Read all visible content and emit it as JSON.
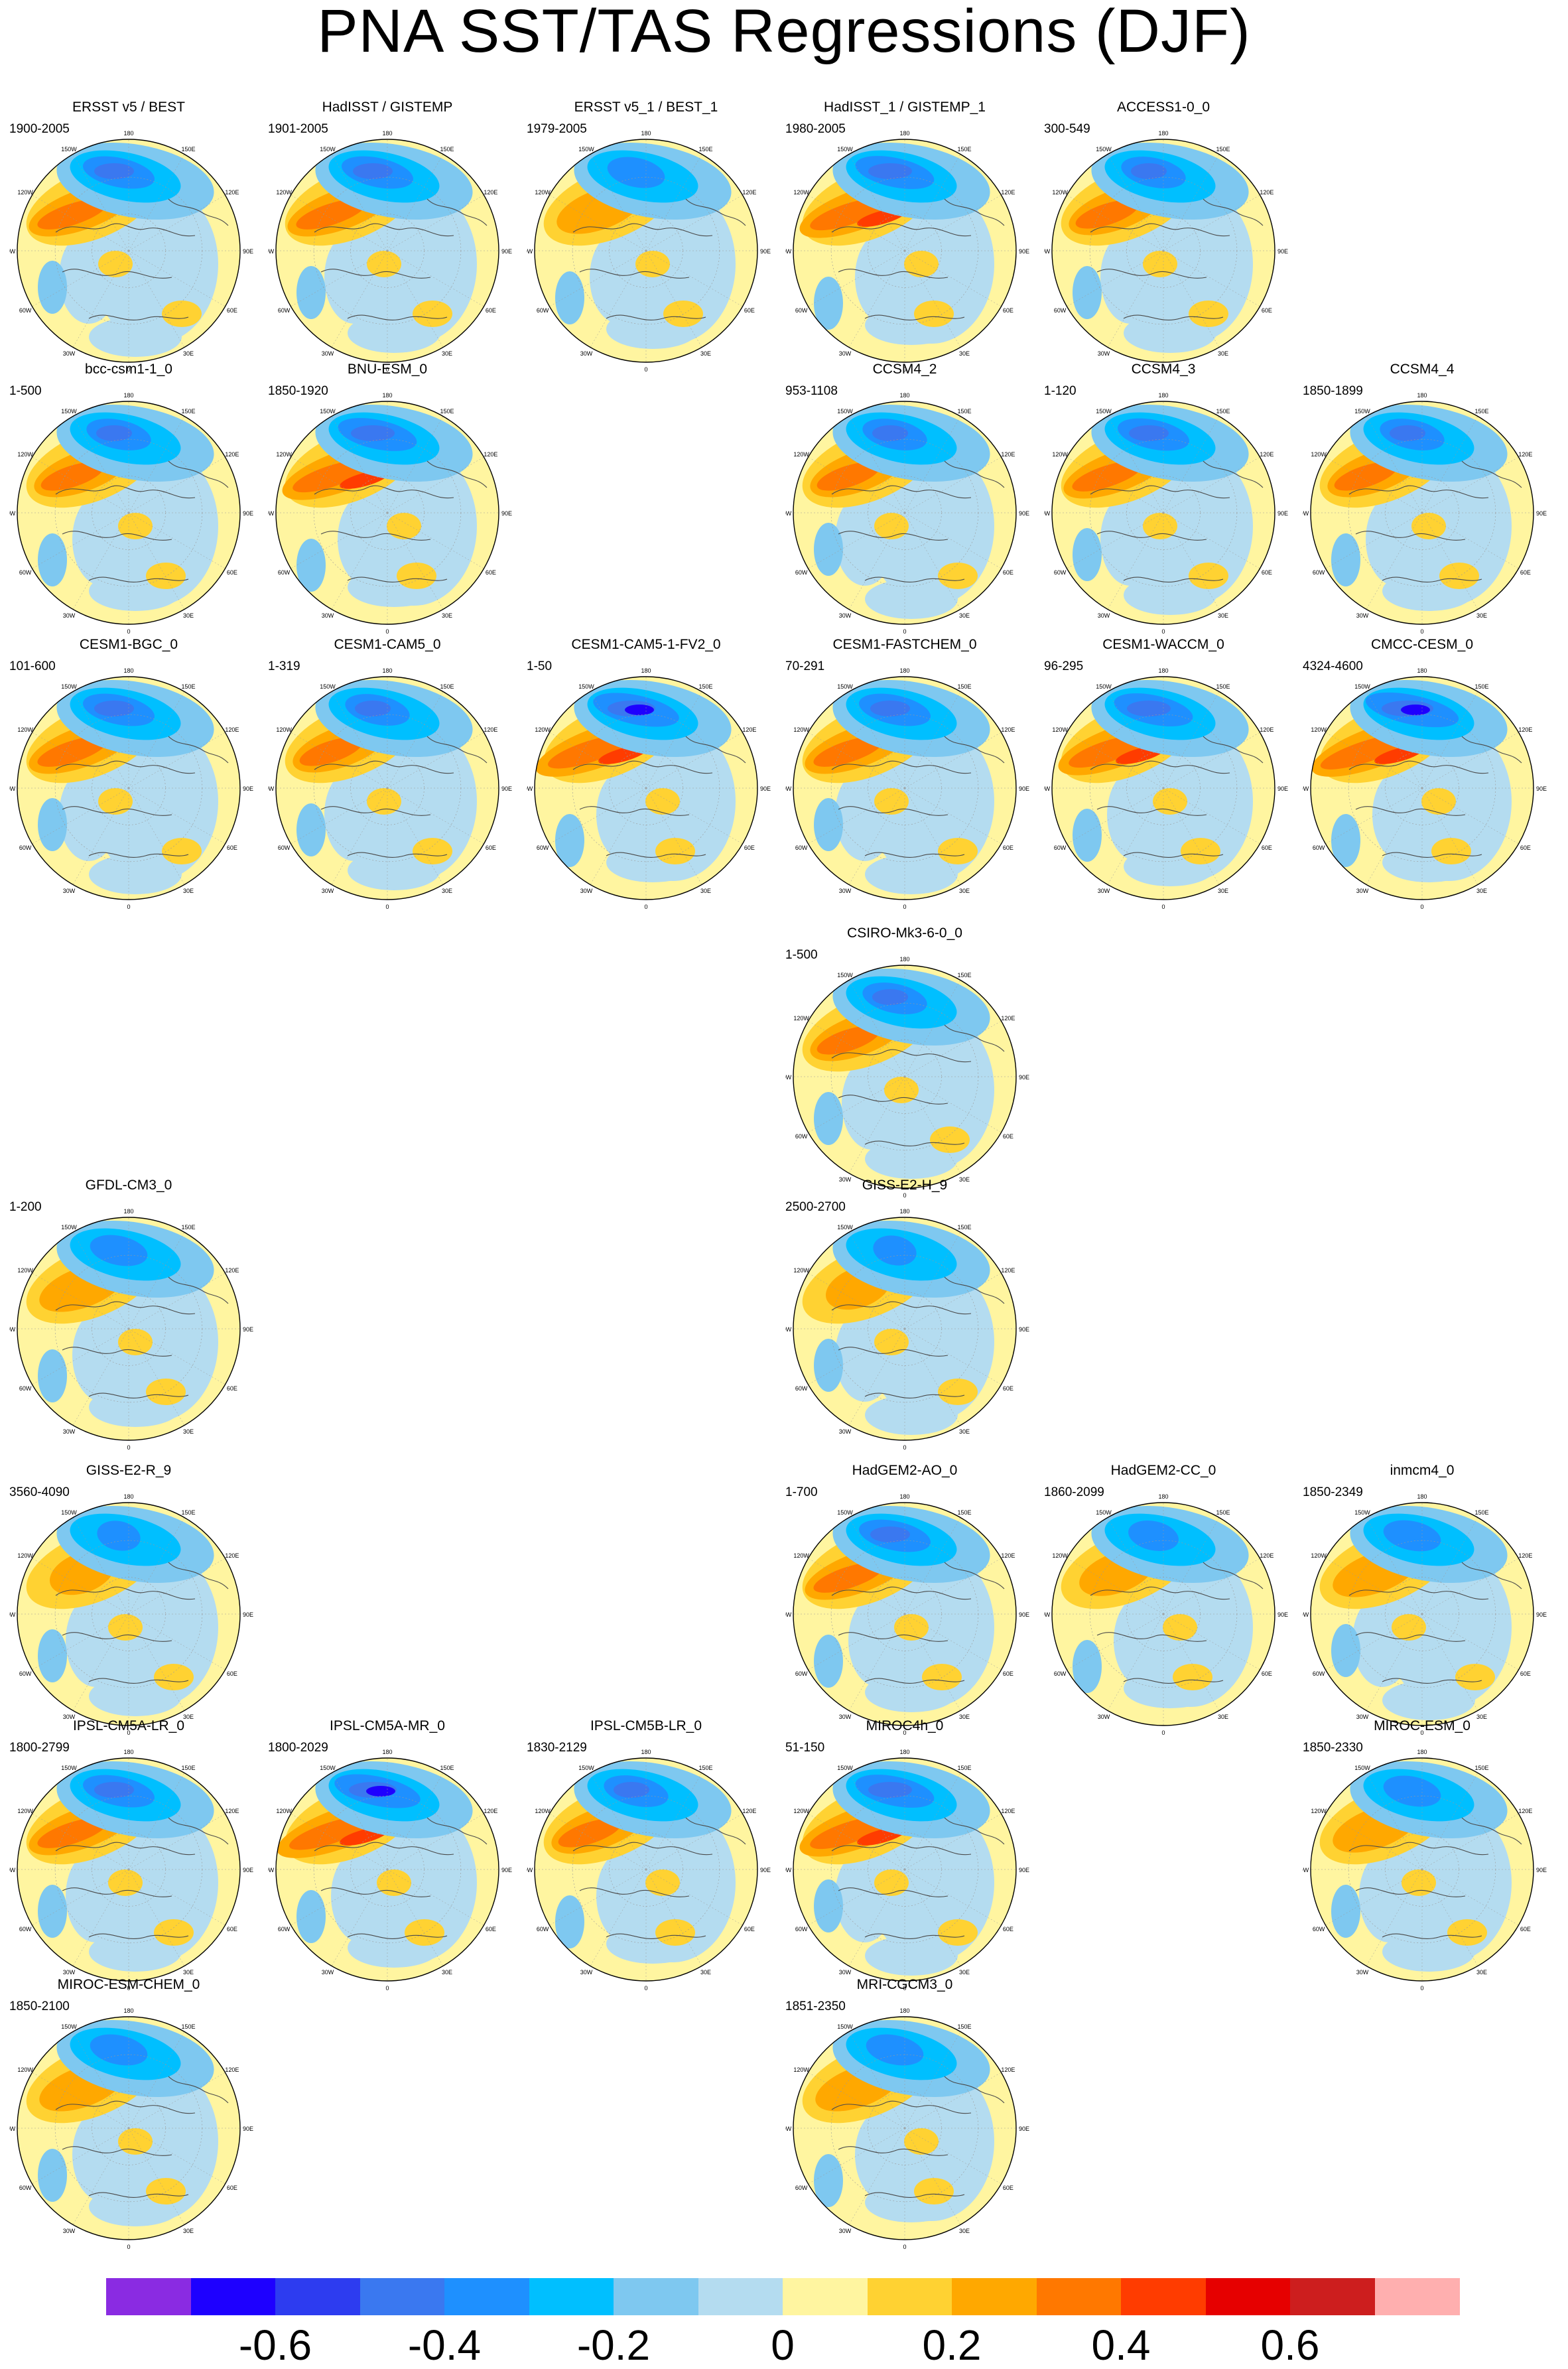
{
  "title": "PNA SST/TAS Regressions (DJF)",
  "map_labels": {
    "lon_180": "180",
    "lon_150w": "150W",
    "lon_150e": "150E",
    "lon_120w": "120W",
    "lon_120e": "120E",
    "lon_90w": "90W",
    "lon_90e": "90E",
    "lon_60w": "60W",
    "lon_60e": "60E",
    "lon_30w": "30W",
    "lon_30e": "30E",
    "lon_0": "0"
  },
  "panels": [
    {
      "name": "ERSST v5 / BEST",
      "years": "1900-2005",
      "variant": 0,
      "intensity": 1.0
    },
    {
      "name": "HadISST / GISTEMP",
      "years": "1901-2005",
      "variant": 1,
      "intensity": 1.0
    },
    {
      "name": "ERSST v5_1 / BEST_1",
      "years": "1979-2005",
      "variant": 2,
      "intensity": 0.8
    },
    {
      "name": "HadISST_1 / GISTEMP_1",
      "years": "1980-2005",
      "variant": 3,
      "intensity": 1.1
    },
    {
      "name": "ACCESS1-0_0",
      "years": "300-549",
      "variant": 1,
      "intensity": 0.9
    },
    {
      "name": "bcc-csm1-1_0",
      "years": "1-500",
      "variant": 2,
      "intensity": 0.9
    },
    {
      "name": "BNU-ESM_0",
      "years": "1850-1920",
      "variant": 3,
      "intensity": 1.1
    },
    {
      "name": "CCSM4_2",
      "years": "953-1108",
      "variant": 0,
      "intensity": 0.9
    },
    {
      "name": "CCSM4_3",
      "years": "1-120",
      "variant": 1,
      "intensity": 1.0
    },
    {
      "name": "CCSM4_4",
      "years": "1850-1899",
      "variant": 2,
      "intensity": 0.9
    },
    {
      "name": "CESM1-BGC_0",
      "years": "101-600",
      "variant": 0,
      "intensity": 1.0
    },
    {
      "name": "CESM1-CAM5_0",
      "years": "1-319",
      "variant": 1,
      "intensity": 0.9
    },
    {
      "name": "CESM1-CAM5-1-FV2_0",
      "years": "1-50",
      "variant": 3,
      "intensity": 1.2
    },
    {
      "name": "CESM1-FASTCHEM_0",
      "years": "70-291",
      "variant": 0,
      "intensity": 1.0
    },
    {
      "name": "CESM1-WACCM_0",
      "years": "96-295",
      "variant": 2,
      "intensity": 1.1
    },
    {
      "name": "CMCC-CESM_0",
      "years": "4324-4600",
      "variant": 3,
      "intensity": 1.3
    },
    {
      "name": "CSIRO-Mk3-6-0_0",
      "years": "1-500",
      "variant": 1,
      "intensity": 0.9
    },
    {
      "name": "GFDL-CM3_0",
      "years": "1-200",
      "variant": 2,
      "intensity": 0.8
    },
    {
      "name": "GISS-E2-H_9",
      "years": "2500-2700",
      "variant": 0,
      "intensity": 0.6
    },
    {
      "name": "GISS-E2-R_9",
      "years": "3560-4090",
      "variant": 1,
      "intensity": 0.6
    },
    {
      "name": "HadGEM2-AO_0",
      "years": "1-700",
      "variant": 2,
      "intensity": 1.0
    },
    {
      "name": "HadGEM2-CC_0",
      "years": "1860-2099",
      "variant": 3,
      "intensity": 0.7
    },
    {
      "name": "inmcm4_0",
      "years": "1850-2349",
      "variant": 0,
      "intensity": 0.8
    },
    {
      "name": "IPSL-CM5A-LR_0",
      "years": "1800-2799",
      "variant": 1,
      "intensity": 1.0
    },
    {
      "name": "IPSL-CM5A-MR_0",
      "years": "1800-2029",
      "variant": 2,
      "intensity": 1.2
    },
    {
      "name": "IPSL-CM5B-LR_0",
      "years": "1830-2129",
      "variant": 3,
      "intensity": 0.9
    },
    {
      "name": "MIROC4h_0",
      "years": "51-150",
      "variant": 0,
      "intensity": 1.1
    },
    {
      "name": "MIROC-ESM_0",
      "years": "1850-2330",
      "variant": 1,
      "intensity": 0.8
    },
    {
      "name": "MIROC-ESM-CHEM_0",
      "years": "1850-2100",
      "variant": 2,
      "intensity": 0.8
    },
    {
      "name": "MRI-CGCM3_0",
      "years": "1851-2350",
      "variant": 3,
      "intensity": 0.8
    }
  ],
  "colorbar": {
    "colors": [
      "#8a2be2",
      "#1e00ff",
      "#2d3cf0",
      "#3a78f0",
      "#1e90ff",
      "#00bfff",
      "#7ec8f0",
      "#b4dcf0",
      "#fff5a0",
      "#ffd232",
      "#ffa800",
      "#ff7800",
      "#ff3c00",
      "#e60000",
      "#cd1e1e",
      "#ffafaf"
    ],
    "tick_labels": [
      "-0.6",
      "-0.4",
      "-0.2",
      "0",
      "0.2",
      "0.4",
      "0.6"
    ]
  }
}
